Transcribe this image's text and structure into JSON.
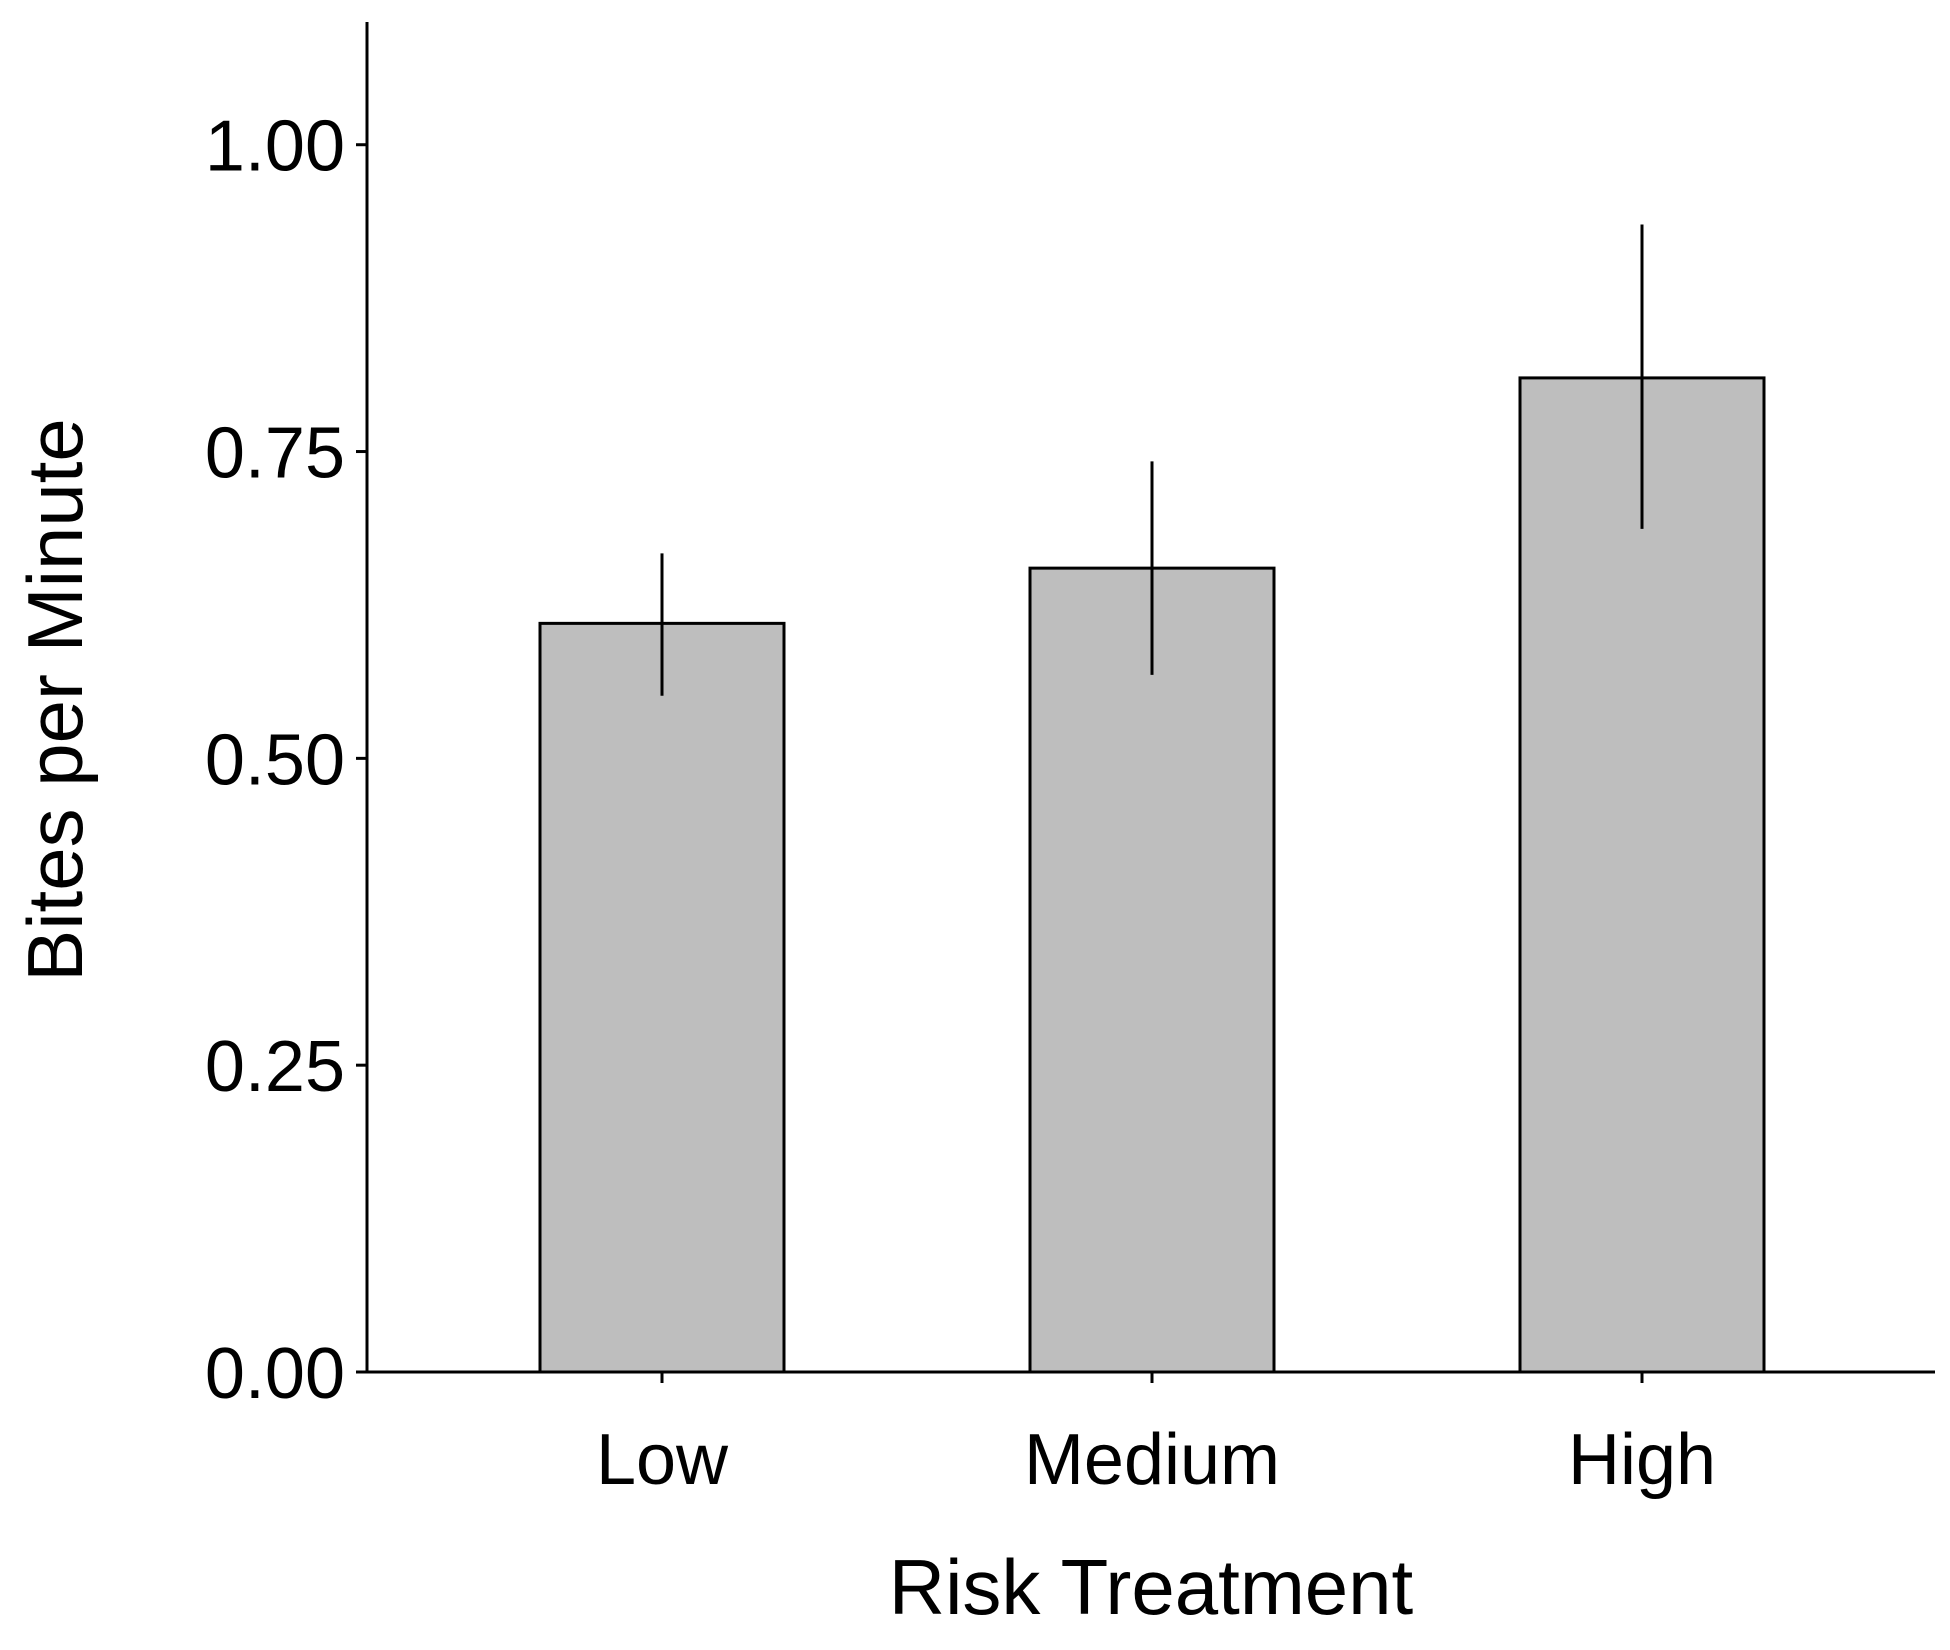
{
  "chart_data": {
    "type": "bar",
    "title": "",
    "xlabel": "Risk Treatment",
    "ylabel": "Bites per Minute",
    "categories": [
      "Low",
      "Medium",
      "High"
    ],
    "values": [
      0.61,
      0.655,
      0.81
    ],
    "error_low": [
      0.551,
      0.568,
      0.687
    ],
    "error_high": [
      0.667,
      0.742,
      0.935
    ],
    "ylim": [
      0,
      1.1
    ],
    "yticks": [
      0,
      0.25,
      0.5,
      0.75,
      1.0
    ],
    "ytick_labels": [
      "0.00",
      "0.25",
      "0.50",
      "0.75",
      "1.00"
    ],
    "grid": false,
    "legend": "none",
    "colors": {
      "bar_fill": "#bebebe",
      "bar_stroke": "#000000",
      "axis": "#000000"
    }
  }
}
